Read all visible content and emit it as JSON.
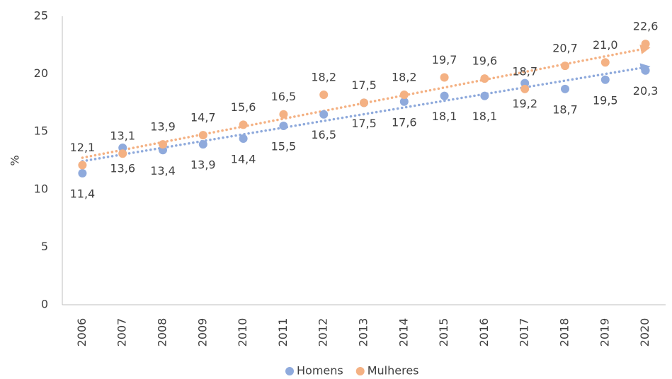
{
  "chart_data": {
    "type": "scatter",
    "y_label": "%",
    "categories": [
      "2006",
      "2007",
      "2008",
      "2009",
      "2010",
      "2011",
      "2012",
      "2013",
      "2014",
      "2015",
      "2016",
      "2017",
      "2018",
      "2019",
      "2020"
    ],
    "series": [
      {
        "name": "Homens",
        "color": "#8faadc",
        "values": [
          11.4,
          13.6,
          13.4,
          13.9,
          14.4,
          15.5,
          16.5,
          17.5,
          17.6,
          18.1,
          18.1,
          19.2,
          18.7,
          19.5,
          20.3
        ],
        "value_labels": [
          "11,4",
          "13,6",
          "13,4",
          "13,9",
          "14,4",
          "15,5",
          "16,5",
          "17,5",
          "17,6",
          "18,1",
          "18,1",
          "19,2",
          "18,7",
          "19,5",
          "20,3"
        ]
      },
      {
        "name": "Mulheres",
        "color": "#f4b183",
        "values": [
          12.1,
          13.1,
          13.9,
          14.7,
          15.6,
          16.5,
          18.2,
          17.5,
          18.2,
          19.7,
          19.6,
          18.7,
          20.7,
          21.0,
          22.6
        ],
        "value_labels": [
          "12,1",
          "13,1",
          "13,9",
          "14,7",
          "15,6",
          "16,5",
          "18,2",
          "17,5",
          "18,2",
          "19,7",
          "19,6",
          "18,7",
          "20,7",
          "21,0",
          "22,6"
        ]
      }
    ],
    "ylim": [
      0,
      25
    ],
    "yticks": [
      0,
      5,
      10,
      15,
      20,
      25
    ],
    "trendline": true,
    "legend": "bottom"
  }
}
